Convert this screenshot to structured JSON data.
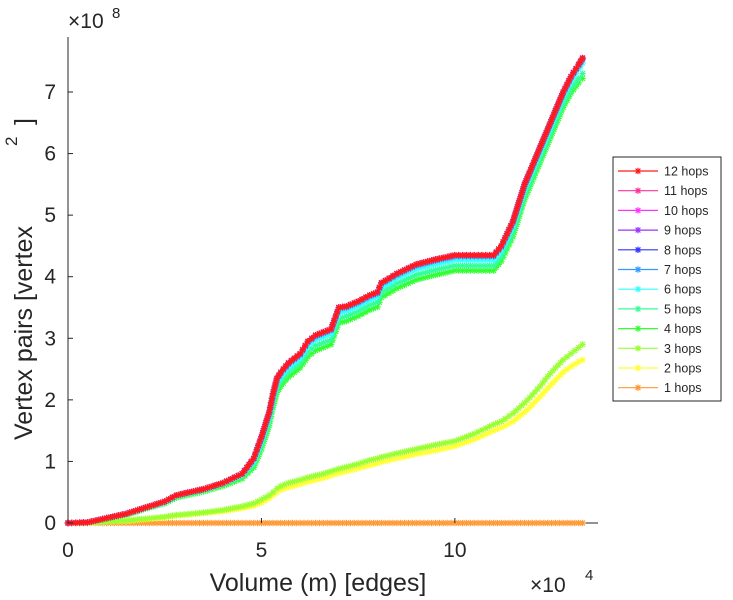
{
  "chart_data": {
    "type": "line",
    "xlabel": "Volume (m) [edges]",
    "ylabel": "Vertex pairs [vertex",
    "ylabel_exponent": "2",
    "ylabel_close": "]",
    "xlim": [
      0,
      137000
    ],
    "ylim": [
      -0.25,
      8.0
    ],
    "x_ticks": [
      0,
      5,
      10
    ],
    "x_tick_labels": [
      "0",
      "5",
      "10"
    ],
    "y_ticks": [
      0,
      1,
      2,
      3,
      4,
      5,
      6,
      7
    ],
    "y_tick_labels": [
      "0",
      "1",
      "2",
      "3",
      "4",
      "5",
      "6",
      "7"
    ],
    "x_multiplier_base": "×10",
    "x_multiplier_exp": "4",
    "y_multiplier_base": "×10",
    "y_multiplier_exp": "8",
    "y_unit_note": "y values in units of 1e8",
    "grid": false,
    "legend_position": "right",
    "x": [
      0,
      5000,
      10000,
      15000,
      20000,
      25000,
      28000,
      30000,
      35000,
      40000,
      45000,
      48000,
      50000,
      52000,
      53000,
      54000,
      55000,
      57000,
      60000,
      62000,
      64000,
      66000,
      68000,
      70000,
      72000,
      75000,
      78000,
      80000,
      81000,
      85000,
      90000,
      95000,
      100000,
      105000,
      110000,
      112000,
      115000,
      118000,
      120000,
      122000,
      124000,
      126000,
      128000,
      130000,
      132000,
      133000
    ],
    "series": [
      {
        "name": "12 hops",
        "color": "#ff1a1a",
        "values": [
          0,
          0.01,
          0.08,
          0.15,
          0.25,
          0.35,
          0.45,
          0.48,
          0.55,
          0.65,
          0.8,
          1.05,
          1.4,
          1.8,
          2.1,
          2.35,
          2.45,
          2.6,
          2.75,
          2.95,
          3.05,
          3.1,
          3.15,
          3.5,
          3.52,
          3.6,
          3.7,
          3.75,
          3.9,
          4.05,
          4.2,
          4.28,
          4.35,
          4.35,
          4.35,
          4.5,
          4.9,
          5.5,
          5.8,
          6.1,
          6.4,
          6.7,
          7.0,
          7.25,
          7.45,
          7.55
        ]
      },
      {
        "name": "11 hops",
        "color": "#ff3399",
        "values": [
          0,
          0.01,
          0.08,
          0.15,
          0.25,
          0.35,
          0.45,
          0.48,
          0.55,
          0.65,
          0.8,
          1.05,
          1.4,
          1.8,
          2.1,
          2.35,
          2.45,
          2.6,
          2.75,
          2.95,
          3.05,
          3.1,
          3.15,
          3.5,
          3.52,
          3.6,
          3.7,
          3.75,
          3.9,
          4.05,
          4.2,
          4.28,
          4.35,
          4.35,
          4.35,
          4.5,
          4.9,
          5.5,
          5.8,
          6.1,
          6.4,
          6.7,
          7.0,
          7.25,
          7.45,
          7.55
        ]
      },
      {
        "name": "10 hops",
        "color": "#ff33ff",
        "values": [
          0,
          0.01,
          0.08,
          0.15,
          0.25,
          0.35,
          0.45,
          0.48,
          0.55,
          0.65,
          0.8,
          1.05,
          1.4,
          1.8,
          2.1,
          2.35,
          2.45,
          2.6,
          2.75,
          2.95,
          3.05,
          3.1,
          3.15,
          3.5,
          3.52,
          3.6,
          3.7,
          3.75,
          3.9,
          4.05,
          4.2,
          4.28,
          4.35,
          4.35,
          4.35,
          4.5,
          4.9,
          5.5,
          5.8,
          6.1,
          6.4,
          6.7,
          7.0,
          7.25,
          7.45,
          7.55
        ]
      },
      {
        "name": "9 hops",
        "color": "#9933ff",
        "values": [
          0,
          0.01,
          0.08,
          0.15,
          0.25,
          0.35,
          0.45,
          0.48,
          0.55,
          0.65,
          0.8,
          1.05,
          1.4,
          1.8,
          2.1,
          2.35,
          2.45,
          2.6,
          2.75,
          2.95,
          3.05,
          3.1,
          3.15,
          3.5,
          3.52,
          3.6,
          3.7,
          3.75,
          3.9,
          4.05,
          4.2,
          4.28,
          4.35,
          4.35,
          4.35,
          4.5,
          4.9,
          5.5,
          5.8,
          6.1,
          6.4,
          6.7,
          7.0,
          7.25,
          7.45,
          7.55
        ]
      },
      {
        "name": "8 hops",
        "color": "#3333ff",
        "values": [
          0,
          0.01,
          0.08,
          0.15,
          0.25,
          0.35,
          0.45,
          0.48,
          0.55,
          0.65,
          0.8,
          1.05,
          1.4,
          1.8,
          2.1,
          2.35,
          2.45,
          2.6,
          2.75,
          2.95,
          3.05,
          3.1,
          3.15,
          3.5,
          3.52,
          3.6,
          3.7,
          3.75,
          3.9,
          4.05,
          4.2,
          4.28,
          4.35,
          4.35,
          4.35,
          4.5,
          4.9,
          5.5,
          5.8,
          6.1,
          6.4,
          6.7,
          7.0,
          7.25,
          7.45,
          7.55
        ]
      },
      {
        "name": "7 hops",
        "color": "#3399ff",
        "values": [
          0,
          0.01,
          0.08,
          0.15,
          0.25,
          0.35,
          0.45,
          0.48,
          0.55,
          0.65,
          0.8,
          1.04,
          1.38,
          1.78,
          2.08,
          2.33,
          2.43,
          2.58,
          2.73,
          2.93,
          3.03,
          3.08,
          3.13,
          3.48,
          3.5,
          3.58,
          3.68,
          3.73,
          3.88,
          4.03,
          4.18,
          4.26,
          4.33,
          4.33,
          4.33,
          4.48,
          4.88,
          5.48,
          5.78,
          6.08,
          6.38,
          6.68,
          6.98,
          7.23,
          7.43,
          7.53
        ]
      },
      {
        "name": "6 hops",
        "color": "#33ffff",
        "values": [
          0,
          0.01,
          0.08,
          0.15,
          0.25,
          0.34,
          0.44,
          0.47,
          0.54,
          0.64,
          0.78,
          1.0,
          1.33,
          1.72,
          2.02,
          2.27,
          2.38,
          2.52,
          2.67,
          2.87,
          2.97,
          3.02,
          3.07,
          3.41,
          3.44,
          3.52,
          3.62,
          3.67,
          3.82,
          3.97,
          4.12,
          4.2,
          4.27,
          4.27,
          4.27,
          4.42,
          4.82,
          5.42,
          5.72,
          6.02,
          6.32,
          6.62,
          6.92,
          7.17,
          7.37,
          7.47
        ]
      },
      {
        "name": "5 hops",
        "color": "#33ff99",
        "values": [
          0,
          0.01,
          0.08,
          0.14,
          0.24,
          0.33,
          0.43,
          0.46,
          0.53,
          0.63,
          0.76,
          0.95,
          1.27,
          1.65,
          1.95,
          2.2,
          2.3,
          2.45,
          2.6,
          2.78,
          2.88,
          2.93,
          2.98,
          3.32,
          3.36,
          3.44,
          3.54,
          3.59,
          3.74,
          3.89,
          4.03,
          4.11,
          4.18,
          4.18,
          4.18,
          4.32,
          4.72,
          5.32,
          5.62,
          5.92,
          6.22,
          6.52,
          6.82,
          7.05,
          7.22,
          7.3
        ]
      },
      {
        "name": "4 hops",
        "color": "#33ff33",
        "values": [
          0,
          0.01,
          0.07,
          0.13,
          0.23,
          0.32,
          0.41,
          0.44,
          0.51,
          0.6,
          0.72,
          0.9,
          1.2,
          1.58,
          1.88,
          2.12,
          2.22,
          2.37,
          2.52,
          2.7,
          2.8,
          2.85,
          2.9,
          3.25,
          3.28,
          3.36,
          3.46,
          3.51,
          3.66,
          3.81,
          3.95,
          4.03,
          4.1,
          4.1,
          4.1,
          4.25,
          4.65,
          5.25,
          5.55,
          5.85,
          6.15,
          6.45,
          6.75,
          6.98,
          7.15,
          7.22
        ]
      },
      {
        "name": "3 hops",
        "color": "#99ff33",
        "values": [
          0,
          0.0,
          0.02,
          0.04,
          0.07,
          0.1,
          0.13,
          0.14,
          0.17,
          0.21,
          0.27,
          0.32,
          0.38,
          0.45,
          0.5,
          0.56,
          0.6,
          0.65,
          0.7,
          0.74,
          0.77,
          0.8,
          0.84,
          0.88,
          0.91,
          0.96,
          1.02,
          1.05,
          1.07,
          1.13,
          1.2,
          1.27,
          1.33,
          1.45,
          1.6,
          1.65,
          1.78,
          1.95,
          2.08,
          2.22,
          2.38,
          2.52,
          2.65,
          2.75,
          2.85,
          2.9
        ]
      },
      {
        "name": "2 hops",
        "color": "#ffff33",
        "values": [
          0,
          0.0,
          0.02,
          0.03,
          0.06,
          0.09,
          0.12,
          0.13,
          0.16,
          0.19,
          0.24,
          0.28,
          0.33,
          0.4,
          0.45,
          0.5,
          0.54,
          0.58,
          0.63,
          0.67,
          0.7,
          0.73,
          0.77,
          0.81,
          0.84,
          0.89,
          0.94,
          0.97,
          0.99,
          1.05,
          1.12,
          1.18,
          1.25,
          1.36,
          1.5,
          1.55,
          1.65,
          1.8,
          1.92,
          2.05,
          2.19,
          2.32,
          2.45,
          2.54,
          2.62,
          2.65
        ]
      },
      {
        "name": "1 hops",
        "color": "#ff9933",
        "values": [
          0,
          0.0,
          0.0,
          0.0,
          0.0,
          0.0,
          0.0,
          0.0,
          0.0,
          0.0,
          0.0,
          0.0,
          0.0,
          0.0,
          0.0,
          0.0,
          0.0,
          0.0,
          0.0,
          0.0,
          0.0,
          0.0,
          0.0,
          0.0,
          0.0,
          0.0,
          0.0,
          0.0,
          0.0,
          0.0,
          0.0,
          0.0,
          0.0,
          0.0,
          0.0,
          0.0,
          0.0,
          0.0,
          0.0,
          0.0,
          0.0,
          0.0,
          0.0,
          0.0,
          0.0,
          0.0
        ]
      }
    ]
  }
}
